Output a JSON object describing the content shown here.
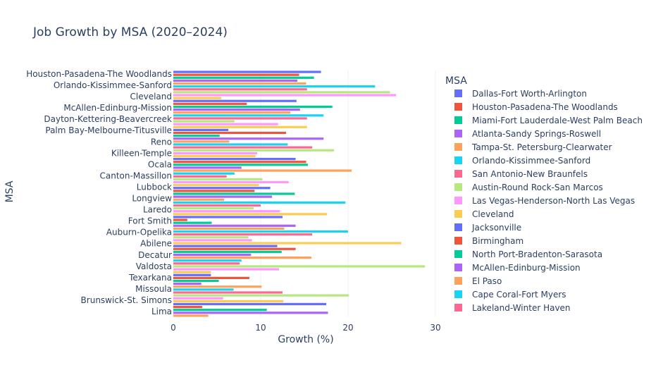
{
  "chart_data": {
    "type": "bar",
    "orientation": "horizontal",
    "title": "Job Growth by MSA (2020–2024)",
    "xlabel": "Growth (%)",
    "ylabel": "MSA",
    "xlim": [
      0,
      30
    ],
    "xticks": [
      "0",
      "10",
      "20",
      "30"
    ],
    "grid": true,
    "legend_title": "MSA",
    "legend_position": "right",
    "ytick_labels": [
      "Houston-Pasadena-The Woodlands",
      "Orlando-Kissimmee-Sanford",
      "Cleveland",
      "McAllen-Edinburg-Mission",
      "Dayton-Kettering-Beavercreek",
      "Palm Bay-Melbourne-Titusville",
      "Reno",
      "Killeen-Temple",
      "Ocala",
      "Canton-Massillon",
      "Lubbock",
      "Longview",
      "Laredo",
      "Fort Smith",
      "Auburn-Opelika",
      "Abilene",
      "Decatur",
      "Valdosta",
      "Texarkana",
      "Missoula",
      "Brunswick-St. Simons",
      "Lima"
    ],
    "colors": [
      "#636efa",
      "#EF553B",
      "#00cc96",
      "#ab63fa",
      "#FFA15A",
      "#19d3f3",
      "#FF6692",
      "#B6E880",
      "#FF97FF",
      "#FECB52"
    ],
    "series": [
      {
        "name": "Dallas-Fort Worth-Arlington",
        "value": 16.9
      },
      {
        "name": "Houston-Pasadena-The Woodlands",
        "value": 14.4
      },
      {
        "name": "Miami-Fort Lauderdale-West Palm Beach",
        "value": 16.1
      },
      {
        "name": "Atlanta-Sandy Springs-Roswell",
        "value": 14.2
      },
      {
        "name": "Tampa-St. Petersburg-Clearwater",
        "value": 15.2
      },
      {
        "name": "Orlando-Kissimmee-Sanford",
        "value": 23.1
      },
      {
        "name": "San Antonio-New Braunfels",
        "value": 15.3
      },
      {
        "name": "Austin-Round Rock-San Marcos",
        "value": 24.8
      },
      {
        "name": "Las Vegas-Henderson-North Las Vegas",
        "value": 25.5
      },
      {
        "name": "Cleveland",
        "value": 5.5
      },
      {
        "name": "Jacksonville",
        "value": 14.1
      },
      {
        "name": "Birmingham",
        "value": 8.4
      },
      {
        "name": "North Port-Bradenton-Sarasota",
        "value": 18.2
      },
      {
        "name": "McAllen-Edinburg-Mission",
        "value": 14.5
      },
      {
        "name": "El Paso",
        "value": 13.4
      },
      {
        "name": "Cape Coral-Fort Myers",
        "value": 17.2
      },
      {
        "name": "Lakeland-Winter Haven",
        "value": 15.3
      },
      {
        "value": 7.0
      },
      {
        "value": 12.0
      },
      {
        "value": 15.3
      },
      {
        "value": 6.3
      },
      {
        "value": 12.9
      },
      {
        "value": 5.3
      },
      {
        "value": 17.2
      },
      {
        "value": 6.4
      },
      {
        "value": 13.1
      },
      {
        "value": 15.9
      },
      {
        "value": 18.4
      },
      {
        "value": 9.6
      },
      {
        "value": 9.4
      },
      {
        "value": 14.0
      },
      {
        "value": 15.2
      },
      {
        "value": 15.4
      },
      {
        "value": 7.8
      },
      {
        "value": 20.4
      },
      {
        "value": 7.0
      },
      {
        "value": 6.1
      },
      {
        "value": 10.2
      },
      {
        "value": 13.2
      },
      {
        "value": 9.8
      },
      {
        "value": 11.1
      },
      {
        "value": 9.3
      },
      {
        "value": 13.9
      },
      {
        "value": 11.3
      },
      {
        "value": 5.8
      },
      {
        "value": 19.7
      },
      {
        "value": 10.0
      },
      {
        "value": 9.2
      },
      {
        "value": 12.2
      },
      {
        "value": 17.6
      },
      {
        "value": 12.5
      },
      {
        "value": 1.6
      },
      {
        "value": 4.4
      },
      {
        "value": 14.0
      },
      {
        "value": 12.7
      },
      {
        "value": 20.0
      },
      {
        "value": 15.9
      },
      {
        "value": 8.6
      },
      {
        "value": 9.0
      },
      {
        "value": 26.1
      },
      {
        "value": 11.9
      },
      {
        "value": 14.0
      },
      {
        "value": 12.4
      },
      {
        "value": 8.9
      },
      {
        "value": 15.8
      },
      {
        "value": 7.8
      },
      {
        "value": 7.6
      },
      {
        "value": 28.8
      },
      {
        "value": 12.1
      },
      {
        "value": 4.3
      },
      {
        "value": 4.3
      },
      {
        "value": 8.7
      },
      {
        "value": 5.2
      },
      {
        "value": 3.2
      },
      {
        "value": 10.1
      },
      {
        "value": 6.9
      },
      {
        "value": 12.5
      },
      {
        "value": 20.1
      },
      {
        "value": 5.7
      },
      {
        "value": 12.6
      },
      {
        "value": 17.5
      },
      {
        "value": 3.3
      },
      {
        "value": 10.7
      },
      {
        "value": 17.7
      },
      {
        "value": 4.0
      }
    ]
  }
}
